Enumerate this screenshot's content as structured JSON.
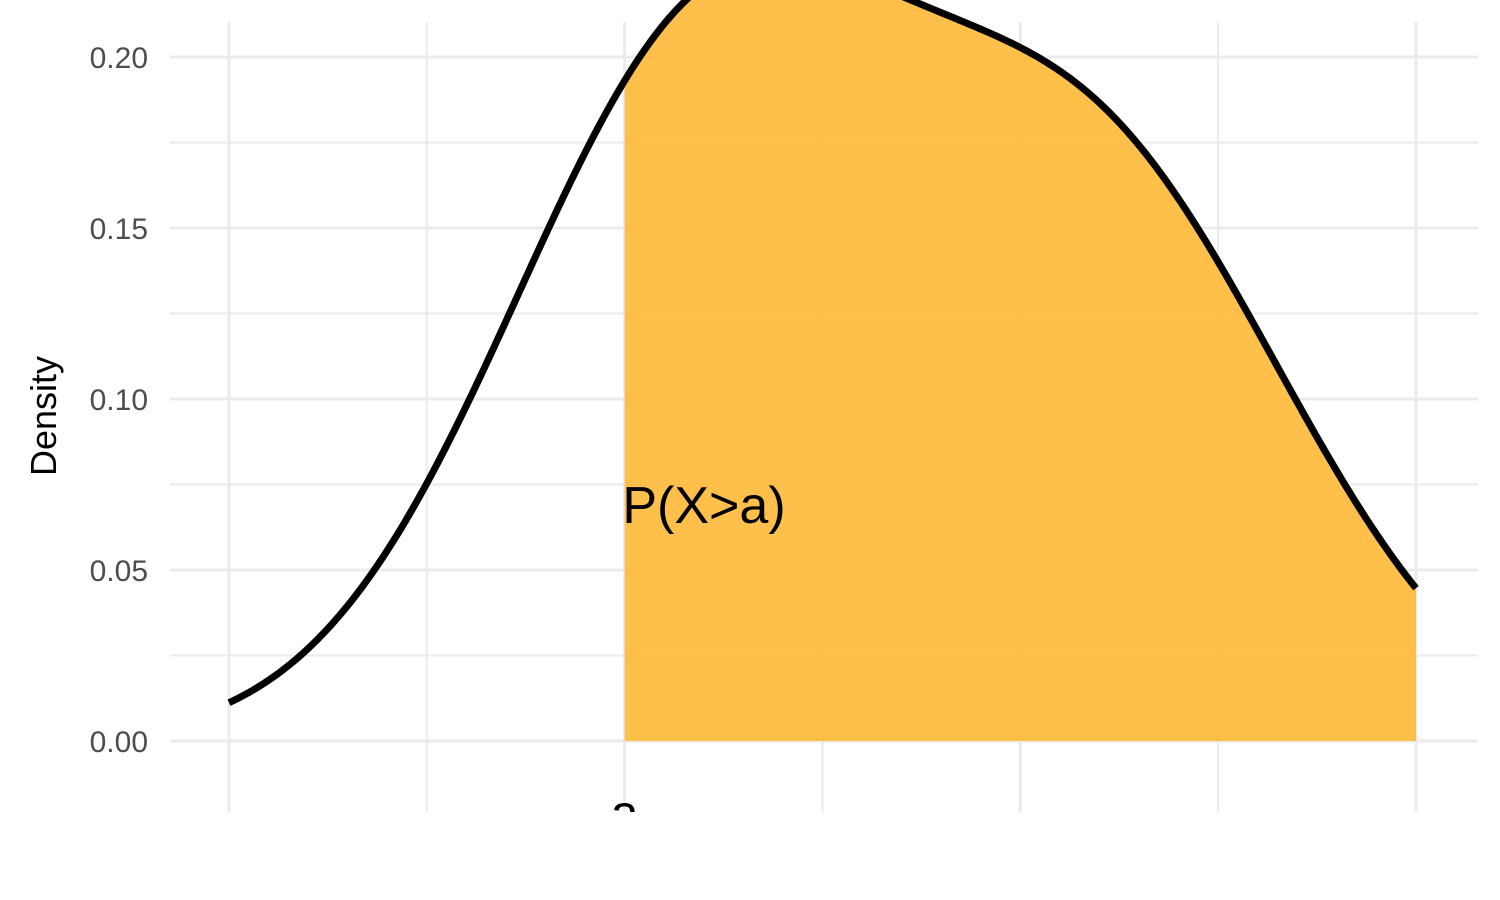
{
  "chart_data": {
    "type": "area",
    "title": "",
    "xlabel": "",
    "ylabel": "Density",
    "xlim": [
      -3,
      3
    ],
    "ylim": [
      0,
      0.2
    ],
    "yticks": [
      0,
      0.05,
      0.1,
      0.15,
      0.2
    ],
    "ytick_labels": [
      "0.00",
      "0.05",
      "0.10",
      "0.15",
      "0.20"
    ],
    "xgrid": [
      -3,
      -2,
      -1,
      0,
      1,
      2,
      3
    ],
    "grid": true,
    "density_curve": {
      "components": [
        {
          "weight": 0.5,
          "mean": -0.6,
          "sd": 1.0
        },
        {
          "weight": 0.4,
          "mean": 1.4,
          "sd": 1.0
        }
      ],
      "curve_color": "#000000"
    },
    "shaded_region": {
      "from": -1,
      "label": "P(X>a)",
      "fill_color": "#FFB732"
    },
    "marker": {
      "x": -1,
      "label": "a"
    }
  }
}
